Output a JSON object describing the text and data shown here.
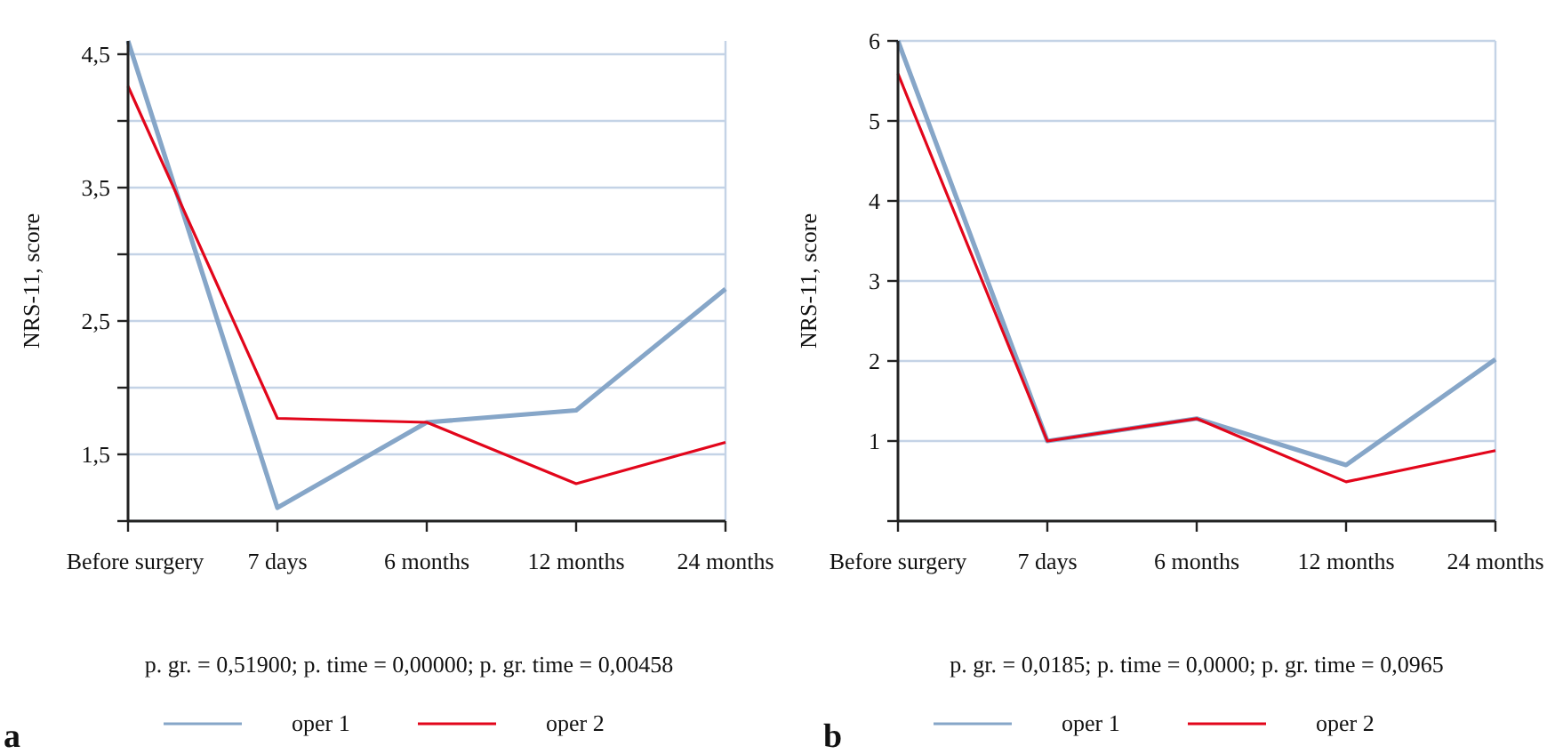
{
  "chart_data": [
    {
      "type": "line",
      "ylabel": "NRS-11, score",
      "categories": [
        "Before surgery",
        "7 days",
        "6 months",
        "12 months",
        "24 months"
      ],
      "ylim": [
        1,
        4.6
      ],
      "yticks": [
        {
          "value": 1,
          "label": null
        },
        {
          "value": 1.5,
          "label": "1,5"
        },
        {
          "value": 2,
          "label": null
        },
        {
          "value": 2.5,
          "label": "2,5"
        },
        {
          "value": 3,
          "label": null
        },
        {
          "value": 3.5,
          "label": "3,5"
        },
        {
          "value": 4,
          "label": null
        },
        {
          "value": 4.5,
          "label": "4,5"
        }
      ],
      "grid": "y",
      "legend": "bottom",
      "marker": "none",
      "line_style": "solid",
      "series": [
        {
          "name": "oper 1",
          "color": "#86a6c8",
          "values": [
            4.6,
            1.1,
            1.74,
            1.83,
            2.74
          ]
        },
        {
          "name": "oper 2",
          "color": "#e2061b",
          "values": [
            4.26,
            1.77,
            1.74,
            1.28,
            1.59
          ]
        }
      ],
      "annotations": [
        "p. gr. = 0,51900; p. time = 0,00000; p. gr. time = 0,00458",
        "a"
      ]
    },
    {
      "type": "line",
      "ylabel": "NRS-11, score",
      "categories": [
        "Before surgery",
        "7 days",
        "6 months",
        "12 months",
        "24 months"
      ],
      "ylim": [
        0,
        6
      ],
      "yticks": [
        {
          "value": 0,
          "label": null
        },
        1,
        2,
        3,
        4,
        5,
        6
      ],
      "grid": "y",
      "legend": "bottom",
      "marker": "none",
      "line_style": "solid",
      "series": [
        {
          "name": "oper 1",
          "color": "#86a6c8",
          "values": [
            6.0,
            1.0,
            1.28,
            0.7,
            2.02
          ]
        },
        {
          "name": "oper 2",
          "color": "#e2061b",
          "values": [
            5.59,
            1.0,
            1.28,
            0.49,
            0.88
          ]
        }
      ],
      "annotations": [
        "p. gr. = 0,0185; p. time = 0,0000; p. gr. time = 0,0965",
        "b"
      ]
    }
  ]
}
